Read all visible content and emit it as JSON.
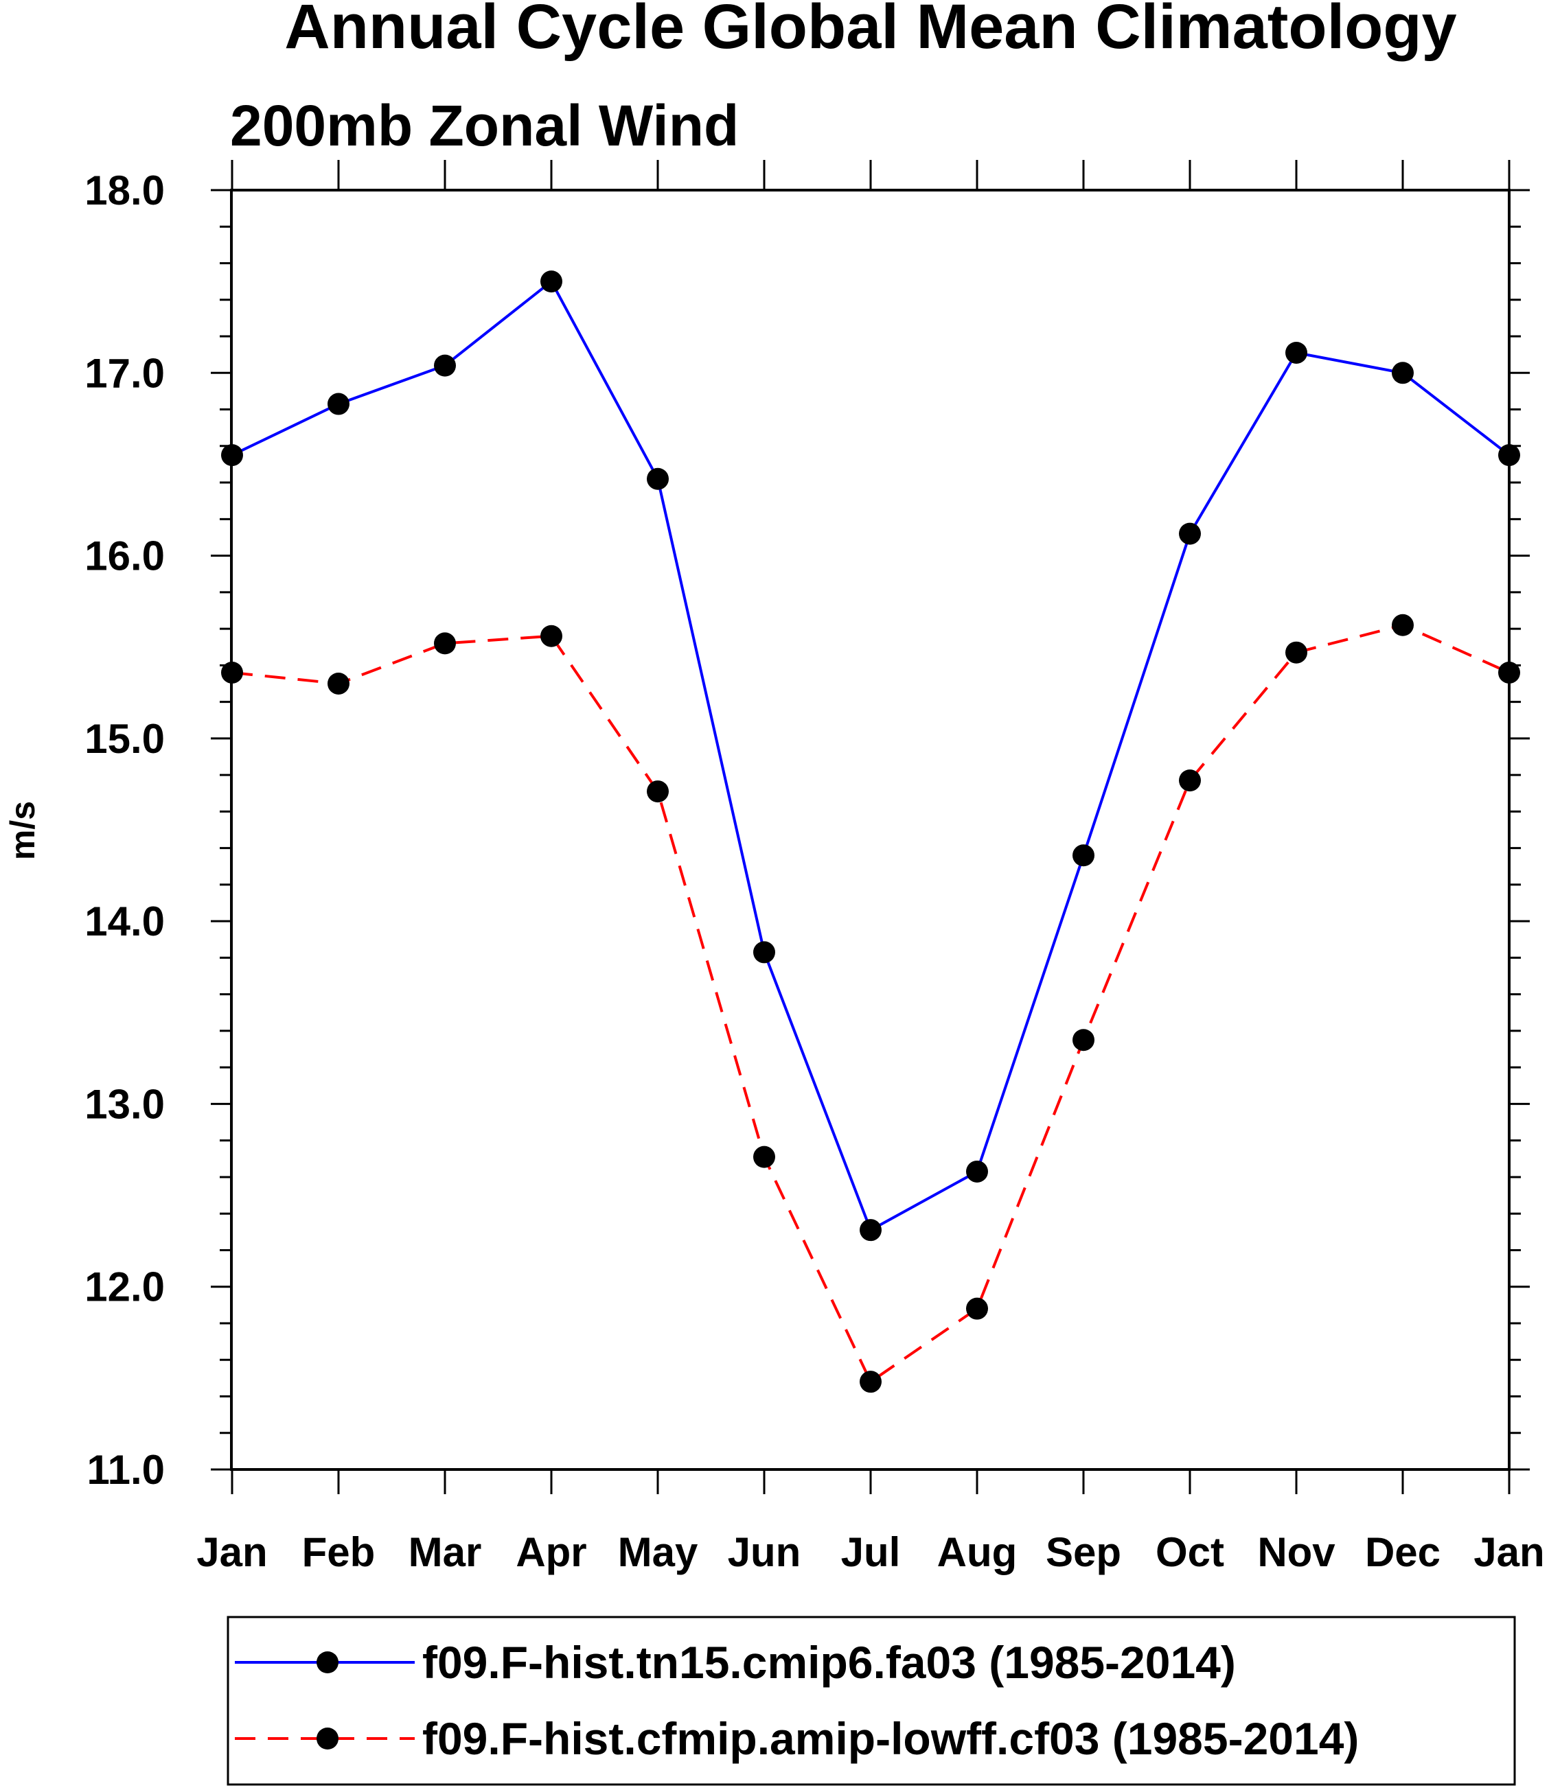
{
  "chart_data": {
    "type": "line",
    "title": "Annual Cycle Global Mean Climatology",
    "subtitle": "200mb Zonal Wind",
    "xlabel": "",
    "ylabel": "m/s",
    "categories": [
      "Jan",
      "Feb",
      "Mar",
      "Apr",
      "May",
      "Jun",
      "Jul",
      "Aug",
      "Sep",
      "Oct",
      "Nov",
      "Dec",
      "Jan"
    ],
    "ylim": [
      11.0,
      18.0
    ],
    "yticks": [
      "11.0",
      "12.0",
      "13.0",
      "14.0",
      "15.0",
      "16.0",
      "17.0",
      "18.0"
    ],
    "grid": false,
    "legend_position": "bottom",
    "series": [
      {
        "name": "f09.F-hist.tn15.cmip6.fa03 (1985-2014)",
        "color": "#0000ff",
        "dash": "solid",
        "values": [
          16.55,
          16.83,
          17.04,
          17.5,
          16.42,
          13.83,
          12.31,
          12.63,
          14.36,
          16.12,
          17.11,
          17.0,
          16.55
        ]
      },
      {
        "name": "f09.F-hist.cfmip.amip-lowff.cf03 (1985-2014)",
        "color": "#ff0000",
        "dash": "dashed",
        "values": [
          15.36,
          15.3,
          15.52,
          15.56,
          14.71,
          12.71,
          11.48,
          11.88,
          13.35,
          14.77,
          15.47,
          15.62,
          15.36
        ]
      }
    ]
  }
}
